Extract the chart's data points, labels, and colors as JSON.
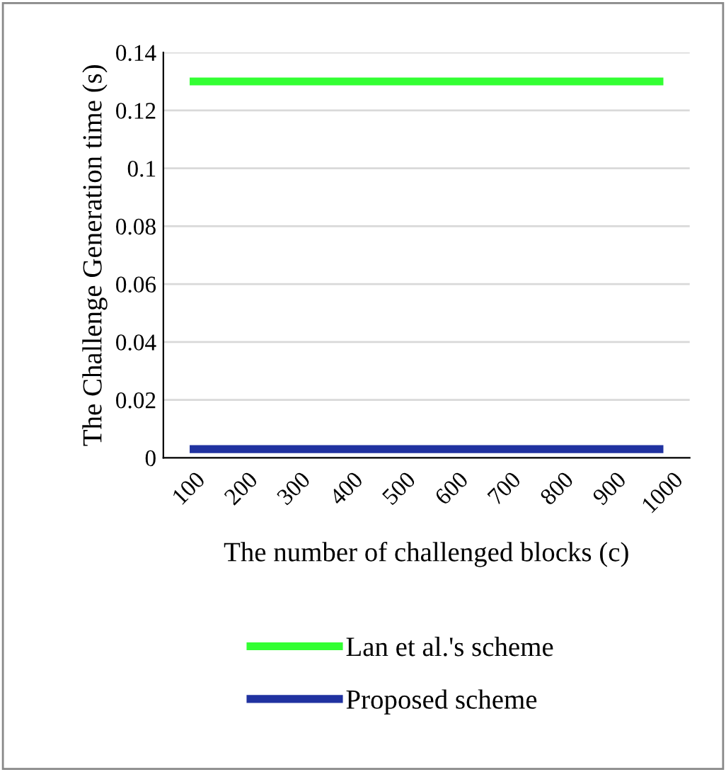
{
  "chart_data": {
    "type": "line",
    "xlabel": "The number of challenged blocks (c)",
    "ylabel": "The Challenge Generation time (s)",
    "categories": [
      "100",
      "200",
      "300",
      "400",
      "500",
      "600",
      "700",
      "800",
      "900",
      "1000"
    ],
    "series": [
      {
        "name": "Lan et al.'s scheme",
        "color": "#33ff33",
        "values": [
          0.13,
          0.13,
          0.13,
          0.13,
          0.13,
          0.13,
          0.13,
          0.13,
          0.13,
          0.13
        ]
      },
      {
        "name": "Proposed scheme",
        "color": "#2032a0",
        "values": [
          0.003,
          0.003,
          0.003,
          0.003,
          0.003,
          0.003,
          0.003,
          0.003,
          0.003,
          0.003
        ]
      }
    ],
    "ylim": [
      0,
      0.14
    ],
    "yticks": [
      0,
      0.02,
      0.04,
      0.06,
      0.08,
      0.1,
      0.12,
      0.14
    ],
    "grid": "y",
    "legend": "bottom",
    "marker": "none",
    "line_style": "solid"
  }
}
